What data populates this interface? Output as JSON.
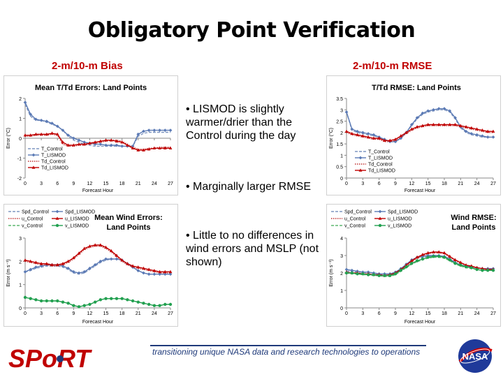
{
  "slide": {
    "title": "Obligatory Point Verification",
    "subtitle_left": "2-m/10-m Bias",
    "subtitle_right": "2-m/10-m RMSE",
    "bullets": [
      "• LISMOD is slightly warmer/drier than the Control during the day",
      "• Marginally larger RMSE",
      "• Little to no differences in wind errors and MSLP (not shown)"
    ],
    "footer": "transitioning unique NASA data and research technologies to operations",
    "logo_left_text": "SPoRT",
    "logo_right_text": "NASA",
    "colors": {
      "title_red": "#c00000",
      "footer_blue": "#1f3a7a"
    }
  },
  "chart_data": [
    {
      "id": "temp-bias",
      "type": "line",
      "title": "Mean T/Td Errors: Land Points",
      "xlabel": "Forecast Hour",
      "ylabel": "Error (°C)",
      "xlim": [
        0,
        27
      ],
      "ylim": [
        -2,
        2
      ],
      "xticks": [
        0,
        3,
        6,
        9,
        12,
        15,
        18,
        21,
        24,
        27
      ],
      "yticks": [
        -2,
        -1,
        0,
        1,
        2
      ],
      "legend": "bottom-left",
      "x": [
        0,
        1,
        2,
        3,
        4,
        5,
        6,
        7,
        8,
        9,
        10,
        11,
        12,
        13,
        14,
        15,
        16,
        17,
        18,
        19,
        20,
        21,
        22,
        23,
        24,
        25,
        26,
        27
      ],
      "series": [
        {
          "name": "T_Control",
          "color": "#7f96c0",
          "style": "dashed",
          "marker": "none",
          "values": [
            1.7,
            1.1,
            0.9,
            0.9,
            0.8,
            0.7,
            0.6,
            0.4,
            0.1,
            -0.1,
            -0.2,
            -0.3,
            -0.35,
            -0.4,
            -0.4,
            -0.4,
            -0.4,
            -0.4,
            -0.4,
            -0.4,
            -0.4,
            0.1,
            0.25,
            0.3,
            0.3,
            0.3,
            0.3,
            0.3
          ]
        },
        {
          "name": "T_LISMOD",
          "color": "#5b7ab5",
          "style": "solid",
          "marker": "diamond",
          "values": [
            1.8,
            1.2,
            0.95,
            0.9,
            0.85,
            0.75,
            0.6,
            0.4,
            0.15,
            0.0,
            -0.1,
            -0.2,
            -0.25,
            -0.3,
            -0.3,
            -0.35,
            -0.35,
            -0.35,
            -0.4,
            -0.4,
            -0.4,
            0.2,
            0.35,
            0.4,
            0.4,
            0.4,
            0.4,
            0.4
          ]
        },
        {
          "name": "Td_Control",
          "color": "#c03030",
          "style": "dotted",
          "marker": "none",
          "values": [
            0.1,
            0.1,
            0.15,
            0.15,
            0.15,
            0.2,
            0.15,
            -0.3,
            -0.4,
            -0.4,
            -0.35,
            -0.35,
            -0.3,
            -0.25,
            -0.2,
            -0.15,
            -0.1,
            -0.1,
            -0.15,
            -0.3,
            -0.45,
            -0.55,
            -0.55,
            -0.5,
            -0.5,
            -0.45,
            -0.45,
            -0.45
          ]
        },
        {
          "name": "Td_LISMOD",
          "color": "#c00000",
          "style": "solid",
          "marker": "triangle",
          "values": [
            0.15,
            0.15,
            0.2,
            0.2,
            0.2,
            0.25,
            0.2,
            -0.2,
            -0.35,
            -0.35,
            -0.3,
            -0.3,
            -0.25,
            -0.2,
            -0.15,
            -0.1,
            -0.1,
            -0.15,
            -0.2,
            -0.35,
            -0.5,
            -0.6,
            -0.6,
            -0.55,
            -0.5,
            -0.5,
            -0.5,
            -0.5
          ]
        }
      ]
    },
    {
      "id": "temp-rmse",
      "type": "line",
      "title": "T/Td RMSE: Land Points",
      "xlabel": "Forecast Hour",
      "ylabel": "Error (°C)",
      "xlim": [
        0,
        27
      ],
      "ylim": [
        0,
        3.5
      ],
      "xticks": [
        0,
        3,
        6,
        9,
        12,
        15,
        18,
        21,
        24,
        27
      ],
      "yticks": [
        0,
        0.5,
        1,
        1.5,
        2,
        2.5,
        3,
        3.5
      ],
      "legend": "bottom-center",
      "x": [
        0,
        1,
        2,
        3,
        4,
        5,
        6,
        7,
        8,
        9,
        10,
        11,
        12,
        13,
        14,
        15,
        16,
        17,
        18,
        19,
        20,
        21,
        22,
        23,
        24,
        25,
        26,
        27
      ],
      "series": [
        {
          "name": "T_Control",
          "color": "#7f96c0",
          "style": "dashed",
          "marker": "none",
          "values": [
            2.9,
            2.1,
            2.0,
            1.95,
            1.9,
            1.85,
            1.8,
            1.7,
            1.6,
            1.6,
            1.75,
            2.0,
            2.3,
            2.6,
            2.8,
            2.9,
            2.95,
            3.0,
            3.0,
            2.9,
            2.6,
            2.2,
            2.0,
            1.9,
            1.85,
            1.8,
            1.8,
            1.8
          ]
        },
        {
          "name": "T_LISMOD",
          "color": "#5b7ab5",
          "style": "solid",
          "marker": "diamond",
          "values": [
            2.9,
            2.15,
            2.05,
            2.0,
            1.95,
            1.9,
            1.8,
            1.7,
            1.6,
            1.6,
            1.75,
            2.0,
            2.35,
            2.65,
            2.85,
            2.95,
            3.0,
            3.05,
            3.05,
            2.95,
            2.65,
            2.25,
            2.05,
            1.95,
            1.9,
            1.85,
            1.8,
            1.8
          ]
        },
        {
          "name": "Td_Control",
          "color": "#c03030",
          "style": "dotted",
          "marker": "none",
          "values": [
            2.0,
            1.9,
            1.85,
            1.8,
            1.75,
            1.7,
            1.7,
            1.6,
            1.6,
            1.65,
            1.8,
            1.95,
            2.1,
            2.2,
            2.25,
            2.3,
            2.3,
            2.3,
            2.3,
            2.3,
            2.3,
            2.25,
            2.2,
            2.15,
            2.1,
            2.05,
            2.0,
            2.0
          ]
        },
        {
          "name": "Td_LISMOD",
          "color": "#c00000",
          "style": "solid",
          "marker": "triangle",
          "values": [
            2.05,
            1.95,
            1.9,
            1.85,
            1.8,
            1.75,
            1.75,
            1.65,
            1.65,
            1.7,
            1.85,
            2.0,
            2.15,
            2.25,
            2.3,
            2.35,
            2.35,
            2.35,
            2.35,
            2.35,
            2.35,
            2.3,
            2.25,
            2.2,
            2.15,
            2.1,
            2.05,
            2.05
          ]
        }
      ]
    },
    {
      "id": "wind-bias",
      "type": "line",
      "title": "Mean Wind Errors: Land Points",
      "xlabel": "Forecast Hour",
      "ylabel": "Error (m s⁻¹)",
      "xlim": [
        0,
        27
      ],
      "ylim": [
        0,
        3
      ],
      "xticks": [
        0,
        3,
        6,
        9,
        12,
        15,
        18,
        21,
        24,
        27
      ],
      "yticks": [
        0,
        1,
        2,
        3
      ],
      "legend": "top-left",
      "x": [
        0,
        1,
        2,
        3,
        4,
        5,
        6,
        7,
        8,
        9,
        10,
        11,
        12,
        13,
        14,
        15,
        16,
        17,
        18,
        19,
        20,
        21,
        22,
        23,
        24,
        25,
        26,
        27
      ],
      "series": [
        {
          "name": "Spd_Control",
          "color": "#7f96c0",
          "style": "dashed",
          "marker": "none",
          "values": [
            1.55,
            1.6,
            1.7,
            1.75,
            1.8,
            1.8,
            1.8,
            1.75,
            1.65,
            1.5,
            1.45,
            1.5,
            1.65,
            1.8,
            1.95,
            2.05,
            2.1,
            2.1,
            2.05,
            1.9,
            1.75,
            1.6,
            1.5,
            1.45,
            1.45,
            1.45,
            1.45,
            1.45
          ]
        },
        {
          "name": "Spd_LISMOD",
          "color": "#5b7ab5",
          "style": "solid",
          "marker": "diamond",
          "values": [
            1.55,
            1.65,
            1.75,
            1.8,
            1.85,
            1.85,
            1.85,
            1.8,
            1.7,
            1.55,
            1.5,
            1.55,
            1.7,
            1.85,
            2.0,
            2.1,
            2.1,
            2.1,
            2.05,
            1.9,
            1.75,
            1.6,
            1.5,
            1.45,
            1.45,
            1.45,
            1.45,
            1.45
          ]
        },
        {
          "name": "u_Control",
          "color": "#c03030",
          "style": "dotted",
          "marker": "none",
          "values": [
            2.0,
            1.95,
            1.9,
            1.85,
            1.85,
            1.8,
            1.8,
            1.85,
            1.95,
            2.1,
            2.3,
            2.5,
            2.6,
            2.65,
            2.65,
            2.55,
            2.4,
            2.2,
            2.0,
            1.85,
            1.75,
            1.7,
            1.65,
            1.6,
            1.55,
            1.5,
            1.5,
            1.5
          ]
        },
        {
          "name": "u_LISMOD",
          "color": "#c00000",
          "style": "solid",
          "marker": "triangle",
          "values": [
            2.05,
            2.0,
            1.95,
            1.9,
            1.9,
            1.85,
            1.85,
            1.9,
            2.0,
            2.15,
            2.35,
            2.55,
            2.65,
            2.7,
            2.7,
            2.6,
            2.45,
            2.25,
            2.05,
            1.9,
            1.8,
            1.75,
            1.7,
            1.65,
            1.6,
            1.55,
            1.55,
            1.55
          ]
        },
        {
          "name": "v_Control",
          "color": "#5fb870",
          "style": "dashed",
          "marker": "none",
          "values": [
            0.45,
            0.4,
            0.35,
            0.3,
            0.3,
            0.3,
            0.3,
            0.25,
            0.2,
            0.1,
            0.05,
            0.1,
            0.15,
            0.25,
            0.35,
            0.4,
            0.4,
            0.4,
            0.4,
            0.35,
            0.3,
            0.25,
            0.2,
            0.15,
            0.1,
            0.1,
            0.15,
            0.15
          ]
        },
        {
          "name": "v_LISMOD",
          "color": "#22a050",
          "style": "solid",
          "marker": "circle",
          "values": [
            0.45,
            0.4,
            0.35,
            0.3,
            0.3,
            0.3,
            0.3,
            0.25,
            0.2,
            0.1,
            0.05,
            0.1,
            0.15,
            0.25,
            0.35,
            0.4,
            0.4,
            0.4,
            0.4,
            0.35,
            0.3,
            0.25,
            0.2,
            0.15,
            0.1,
            0.1,
            0.15,
            0.15
          ]
        }
      ]
    },
    {
      "id": "wind-rmse",
      "type": "line",
      "title": "Wind RMSE: Land Points",
      "xlabel": "Forecast Hour",
      "ylabel": "Error (m s⁻¹)",
      "xlim": [
        0,
        27
      ],
      "ylim": [
        0,
        4
      ],
      "xticks": [
        0,
        3,
        6,
        9,
        12,
        15,
        18,
        21,
        24,
        27
      ],
      "yticks": [
        0,
        1,
        2,
        3,
        4
      ],
      "legend": "top-left",
      "x": [
        0,
        1,
        2,
        3,
        4,
        5,
        6,
        7,
        8,
        9,
        10,
        11,
        12,
        13,
        14,
        15,
        16,
        17,
        18,
        19,
        20,
        21,
        22,
        23,
        24,
        25,
        26,
        27
      ],
      "series": [
        {
          "name": "Spd_Control",
          "color": "#7f96c0",
          "style": "dashed",
          "marker": "none",
          "values": [
            2.1,
            2.1,
            2.05,
            2.05,
            2.0,
            2.0,
            1.95,
            1.9,
            1.9,
            2.0,
            2.2,
            2.45,
            2.7,
            2.85,
            2.9,
            2.95,
            3.0,
            3.0,
            2.95,
            2.8,
            2.6,
            2.45,
            2.4,
            2.35,
            2.3,
            2.25,
            2.25,
            2.25
          ]
        },
        {
          "name": "Spd_LISMOD",
          "color": "#5b7ab5",
          "style": "solid",
          "marker": "diamond",
          "values": [
            2.2,
            2.15,
            2.1,
            2.05,
            2.05,
            2.0,
            1.95,
            1.95,
            1.95,
            2.05,
            2.25,
            2.5,
            2.75,
            2.9,
            2.95,
            3.0,
            3.0,
            3.0,
            2.95,
            2.8,
            2.6,
            2.45,
            2.4,
            2.35,
            2.3,
            2.25,
            2.25,
            2.25
          ]
        },
        {
          "name": "u_Control",
          "color": "#c03030",
          "style": "dotted",
          "marker": "none",
          "values": [
            2.0,
            2.0,
            1.95,
            1.95,
            1.9,
            1.9,
            1.85,
            1.85,
            1.85,
            1.95,
            2.15,
            2.4,
            2.65,
            2.85,
            3.0,
            3.1,
            3.15,
            3.15,
            3.1,
            2.9,
            2.7,
            2.55,
            2.45,
            2.35,
            2.3,
            2.25,
            2.2,
            2.2
          ]
        },
        {
          "name": "u_LISMOD",
          "color": "#c00000",
          "style": "solid",
          "marker": "triangle",
          "values": [
            2.05,
            2.0,
            2.0,
            1.95,
            1.95,
            1.9,
            1.9,
            1.85,
            1.9,
            2.0,
            2.2,
            2.45,
            2.7,
            2.9,
            3.05,
            3.15,
            3.2,
            3.2,
            3.15,
            2.95,
            2.75,
            2.6,
            2.45,
            2.4,
            2.3,
            2.25,
            2.2,
            2.2
          ]
        },
        {
          "name": "v_Control",
          "color": "#5fb870",
          "style": "dashed",
          "marker": "none",
          "values": [
            2.0,
            1.95,
            1.95,
            1.9,
            1.9,
            1.85,
            1.85,
            1.8,
            1.8,
            1.9,
            2.1,
            2.3,
            2.5,
            2.65,
            2.75,
            2.85,
            2.9,
            2.9,
            2.85,
            2.7,
            2.5,
            2.4,
            2.3,
            2.25,
            2.2,
            2.15,
            2.15,
            2.15
          ]
        },
        {
          "name": "v_LISMOD",
          "color": "#22a050",
          "style": "solid",
          "marker": "circle",
          "values": [
            2.0,
            2.0,
            1.95,
            1.95,
            1.9,
            1.9,
            1.85,
            1.85,
            1.85,
            1.95,
            2.15,
            2.35,
            2.55,
            2.7,
            2.8,
            2.9,
            2.95,
            2.95,
            2.9,
            2.75,
            2.55,
            2.45,
            2.35,
            2.3,
            2.2,
            2.15,
            2.15,
            2.15
          ]
        }
      ]
    }
  ]
}
